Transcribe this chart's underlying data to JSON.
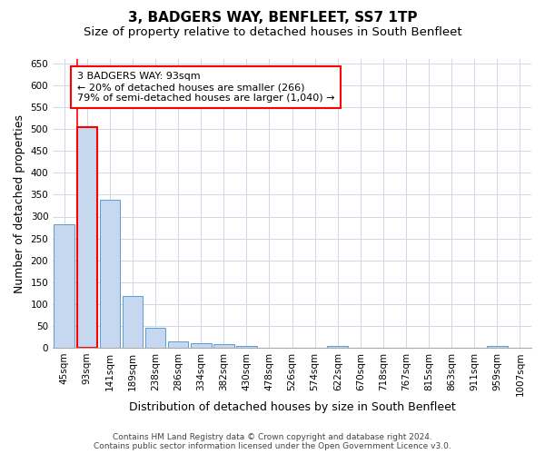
{
  "title": "3, BADGERS WAY, BENFLEET, SS7 1TP",
  "subtitle": "Size of property relative to detached houses in South Benfleet",
  "xlabel": "Distribution of detached houses by size in South Benfleet",
  "ylabel": "Number of detached properties",
  "categories": [
    "45sqm",
    "93sqm",
    "141sqm",
    "189sqm",
    "238sqm",
    "286sqm",
    "334sqm",
    "382sqm",
    "430sqm",
    "478sqm",
    "526sqm",
    "574sqm",
    "622sqm",
    "670sqm",
    "718sqm",
    "767sqm",
    "815sqm",
    "863sqm",
    "911sqm",
    "959sqm",
    "1007sqm"
  ],
  "values": [
    282,
    505,
    338,
    118,
    46,
    15,
    10,
    8,
    5,
    0,
    0,
    0,
    5,
    0,
    0,
    0,
    0,
    0,
    0,
    5,
    0
  ],
  "bar_color": "#c5d8f0",
  "bar_edge_color": "#5b9bd5",
  "highlight_bar_index": 1,
  "highlight_edge_color": "#ff0000",
  "vline_x": 1,
  "vline_color": "#ff0000",
  "annotation_text": "3 BADGERS WAY: 93sqm\n← 20% of detached houses are smaller (266)\n79% of semi-detached houses are larger (1,040) →",
  "annotation_box_color": "#ffffff",
  "annotation_box_edge_color": "#ff0000",
  "ylim": [
    0,
    660
  ],
  "yticks": [
    0,
    50,
    100,
    150,
    200,
    250,
    300,
    350,
    400,
    450,
    500,
    550,
    600,
    650
  ],
  "footer_line1": "Contains HM Land Registry data © Crown copyright and database right 2024.",
  "footer_line2": "Contains public sector information licensed under the Open Government Licence v3.0.",
  "background_color": "#ffffff",
  "grid_color": "#d0d8e8",
  "title_fontsize": 11,
  "subtitle_fontsize": 9.5,
  "axis_label_fontsize": 9,
  "tick_fontsize": 7.5,
  "annotation_fontsize": 8,
  "footer_fontsize": 6.5
}
